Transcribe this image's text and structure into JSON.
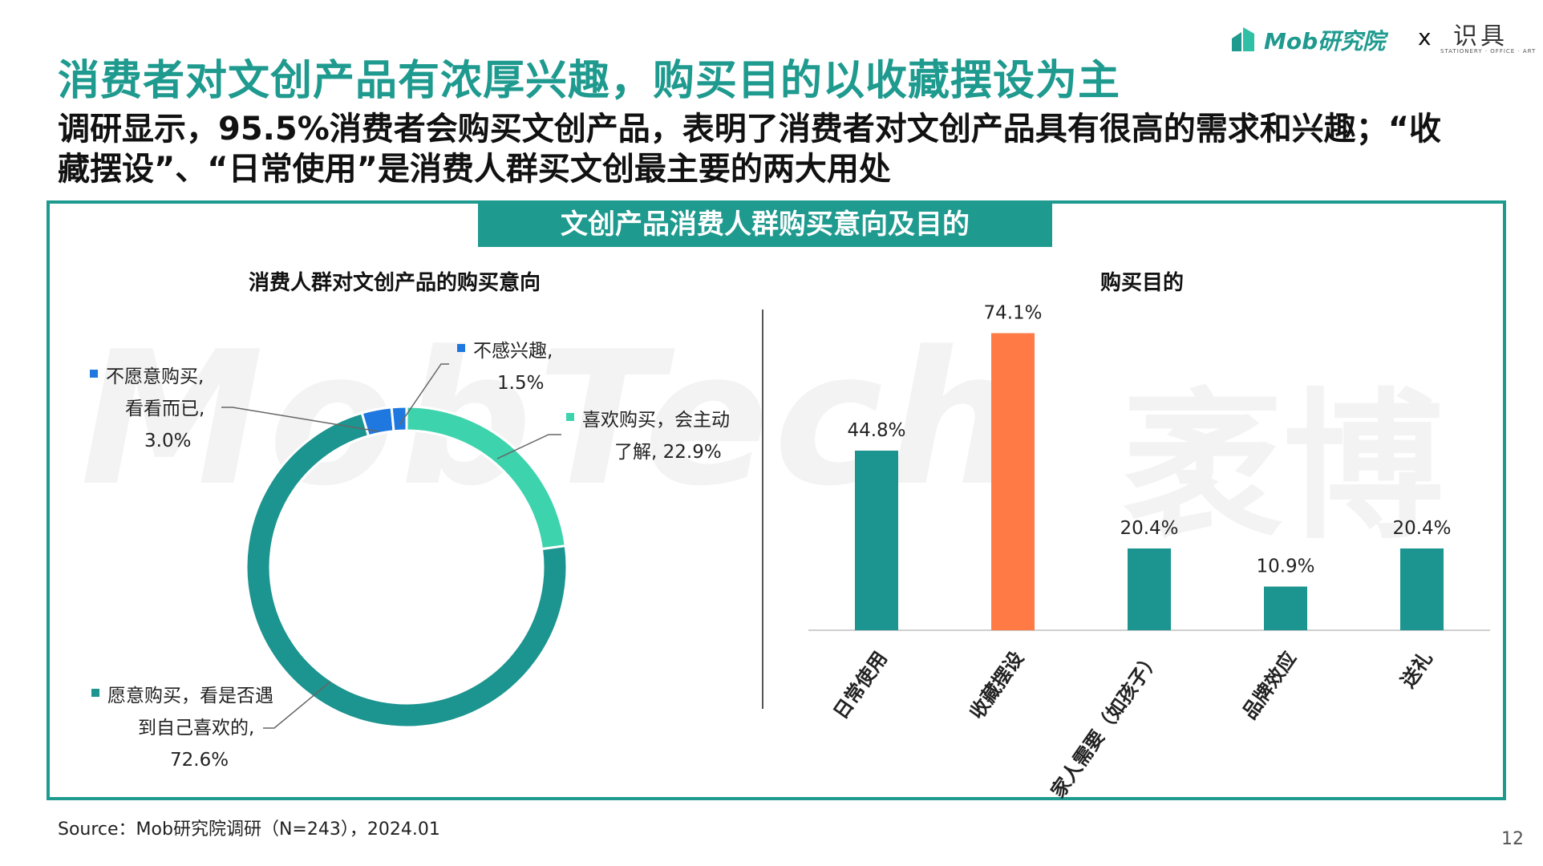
{
  "title": "消费者对文创产品有浓厚兴趣，购买目的以收藏摆设为主",
  "subtitle": "调研显示，95.5%消费者会购买文创产品，表明了消费者对文创产品具有很高的需求和兴趣；“收藏摆设”、“日常使用”是消费人群买文创最主要的两大用处",
  "logo": {
    "brand": "Mob研究院",
    "x": "x",
    "partner": "识具",
    "partner_sub": "STATIONERY · OFFICE · ART"
  },
  "watermark": {
    "left": "MobTech",
    "right": "袤博"
  },
  "frame_title": "文创产品消费人群购买意向及目的",
  "source": "Source：Mob研究院调研（N=243），2024.01",
  "page_number": "12",
  "colors": {
    "teal": "#1c948f",
    "light_teal": "#3dd3ad",
    "blue": "#1e78e0",
    "orange": "#ff7a45"
  },
  "chart_data": [
    {
      "type": "pie",
      "variant": "donut",
      "title": "消费人群对文创产品的购买意向",
      "slices": [
        {
          "name": "喜欢购买，会主动了解",
          "value": 22.9,
          "label_lines": [
            "喜欢购买，会主动",
            "了解, 22.9%"
          ],
          "color": "#3dd3ad"
        },
        {
          "name": "愿意购买，看是否遇到自己喜欢的",
          "value": 72.6,
          "label_lines": [
            "愿意购买，看是否遇",
            "到自己喜欢的,",
            "72.6%"
          ],
          "color": "#1c948f"
        },
        {
          "name": "不愿意购买，看看而已",
          "value": 3.0,
          "label_lines": [
            "不愿意购买,",
            "看看而已,",
            "3.0%"
          ],
          "color": "#1e78e0"
        },
        {
          "name": "不感兴趣",
          "value": 1.5,
          "label_lines": [
            "不感兴趣,",
            "1.5%"
          ],
          "color": "#1e78e0"
        }
      ]
    },
    {
      "type": "bar",
      "title": "购买目的",
      "categories": [
        "日常使用",
        "收藏摆设",
        "家人需要（如孩子）",
        "品牌效应",
        "送礼"
      ],
      "values": [
        44.8,
        74.1,
        20.4,
        10.9,
        20.4
      ],
      "value_labels": [
        "44.8%",
        "74.1%",
        "20.4%",
        "10.9%",
        "20.4%"
      ],
      "colors": [
        "#1c948f",
        "#ff7a45",
        "#1c948f",
        "#1c948f",
        "#1c948f"
      ],
      "ylim": [
        0,
        80
      ],
      "grid": false
    }
  ]
}
